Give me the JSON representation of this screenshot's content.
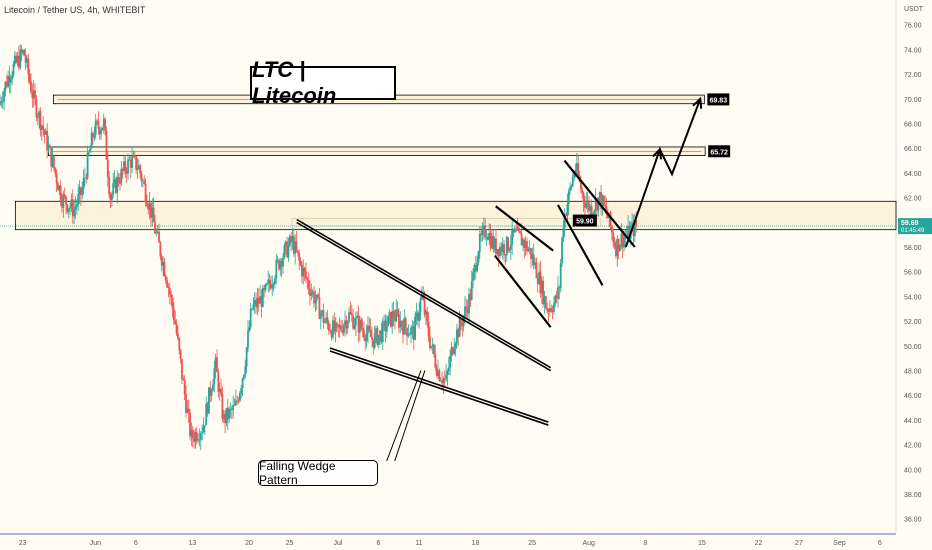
{
  "symbol_label": "Litecoin / Tether US, 4h, WHITEBIT",
  "title_box": "LTC | Litecoin",
  "callout": "Falling Wedge Pattern",
  "currency": "USDT",
  "colors": {
    "up": "#26a69a",
    "down": "#ef5350",
    "zone": "#fdf1d8",
    "zone_border": "#000000",
    "price_line": "#26a69a",
    "background": "#fffdf3",
    "axis_line": "#5c6bc0"
  },
  "chart_data": {
    "type": "candlestick",
    "title": "LTC | Litecoin",
    "xlabel": "",
    "ylabel": "",
    "ylim": [
      35,
      78
    ],
    "y_ticks": [
      "36.00",
      "38.00",
      "40.00",
      "42.00",
      "44.00",
      "46.00",
      "48.00",
      "50.00",
      "52.00",
      "54.00",
      "56.00",
      "58.00",
      "60.00",
      "62.00",
      "64.00",
      "66.00",
      "68.00",
      "70.00",
      "72.00",
      "74.00",
      "76.00"
    ],
    "x_ticks": [
      {
        "label": "23",
        "day": 0
      },
      {
        "label": "Jun",
        "day": 9
      },
      {
        "label": "6",
        "day": 14
      },
      {
        "label": "13",
        "day": 21
      },
      {
        "label": "20",
        "day": 28
      },
      {
        "label": "25",
        "day": 33
      },
      {
        "label": "Jul",
        "day": 39
      },
      {
        "label": "6",
        "day": 44
      },
      {
        "label": "11",
        "day": 49
      },
      {
        "label": "18",
        "day": 56
      },
      {
        "label": "25",
        "day": 63
      },
      {
        "label": "Aug",
        "day": 70
      },
      {
        "label": "8",
        "day": 77
      },
      {
        "label": "15",
        "day": 84
      },
      {
        "label": "22",
        "day": 91
      },
      {
        "label": "27",
        "day": 96
      },
      {
        "label": "Sep",
        "day": 101
      },
      {
        "label": "6",
        "day": 106
      }
    ],
    "x_range_days": [
      -2.8,
      108
    ],
    "price_path": [
      [
        -2.8,
        69.5
      ],
      [
        -1.5,
        72.0
      ],
      [
        0.3,
        73.8
      ],
      [
        1.5,
        70.0
      ],
      [
        2.5,
        68.0
      ],
      [
        4.0,
        64.5
      ],
      [
        5.0,
        62.0
      ],
      [
        6.5,
        61.0
      ],
      [
        7.5,
        62.5
      ],
      [
        9.0,
        67.5
      ],
      [
        10.2,
        68.0
      ],
      [
        11.0,
        62.0
      ],
      [
        12.0,
        63.5
      ],
      [
        13.5,
        65.0
      ],
      [
        14.5,
        64.5
      ],
      [
        16.0,
        61.0
      ],
      [
        16.5,
        59.5
      ],
      [
        18.0,
        55.5
      ],
      [
        19.0,
        52.0
      ],
      [
        20.0,
        47.0
      ],
      [
        21.0,
        42.5
      ],
      [
        22.5,
        43.5
      ],
      [
        24.0,
        48.5
      ],
      [
        25.0,
        44.0
      ],
      [
        26.5,
        45.0
      ],
      [
        27.5,
        48.0
      ],
      [
        28.5,
        53.0
      ],
      [
        30.0,
        54.0
      ],
      [
        32.0,
        57.0
      ],
      [
        33.5,
        58.5
      ],
      [
        34.5,
        56.5
      ],
      [
        35.5,
        55.0
      ],
      [
        36.5,
        53.5
      ],
      [
        37.5,
        52.0
      ],
      [
        39.0,
        51.0
      ],
      [
        40.5,
        52.5
      ],
      [
        42.0,
        51.5
      ],
      [
        43.5,
        50.5
      ],
      [
        44.5,
        51.0
      ],
      [
        46.0,
        52.5
      ],
      [
        47.5,
        51.5
      ],
      [
        48.5,
        51.0
      ],
      [
        49.5,
        54.0
      ],
      [
        50.5,
        50.5
      ],
      [
        51.5,
        48.0
      ],
      [
        52.5,
        47.0
      ],
      [
        53.5,
        50.5
      ],
      [
        54.5,
        52.0
      ],
      [
        55.5,
        54.0
      ],
      [
        56.5,
        58.0
      ],
      [
        57.5,
        59.5
      ],
      [
        58.5,
        58.0
      ],
      [
        60.0,
        58.0
      ],
      [
        61.0,
        59.0
      ],
      [
        62.0,
        58.5
      ],
      [
        63.0,
        57.5
      ],
      [
        64.0,
        55.5
      ],
      [
        65.0,
        53.0
      ],
      [
        66.0,
        53.5
      ],
      [
        66.5,
        54.5
      ],
      [
        67.0,
        60.0
      ],
      [
        68.0,
        63.0
      ],
      [
        68.5,
        64.5
      ],
      [
        69.5,
        62.0
      ],
      [
        70.5,
        61.0
      ],
      [
        71.5,
        62.0
      ],
      [
        72.5,
        60.5
      ],
      [
        73.5,
        58.0
      ],
      [
        74.0,
        58.5
      ],
      [
        75.0,
        59.0
      ],
      [
        76.0,
        59.69
      ]
    ],
    "zones": [
      {
        "bottom": 69.6,
        "top": 70.3,
        "from_day": 3.8,
        "to_day": 84.3,
        "label": "69.83"
      },
      {
        "bottom": 65.4,
        "top": 66.1,
        "from_day": 3.2,
        "to_day": 84.4,
        "label": "65.72"
      },
      {
        "bottom": 59.7,
        "top": 60.3,
        "from_day": 33.3,
        "to_day": 71.5,
        "label": "59.90"
      },
      {
        "bottom": 59.4,
        "top": 61.7,
        "from_day": -0.9,
        "to_day": 108
      }
    ],
    "last_price": {
      "value": "59.69",
      "countdown": "01:45:49"
    },
    "trendlines": [
      {
        "points": [
          [
            33.9,
            60.1
          ],
          [
            65.3,
            48.1
          ]
        ],
        "style": "double"
      },
      {
        "points": [
          [
            38.0,
            49.7
          ],
          [
            65.0,
            43.7
          ]
        ],
        "style": "double"
      },
      {
        "points": [
          [
            58.5,
            61.3
          ],
          [
            65.6,
            57.7
          ]
        ],
        "style": "single"
      },
      {
        "points": [
          [
            58.4,
            57.3
          ],
          [
            65.3,
            51.5
          ]
        ],
        "style": "single"
      },
      {
        "points": [
          [
            67.0,
            65.0
          ],
          [
            75.7,
            58.0
          ]
        ],
        "style": "single"
      },
      {
        "points": [
          [
            66.2,
            61.4
          ],
          [
            71.7,
            54.9
          ]
        ],
        "style": "single"
      }
    ],
    "projection": [
      [
        74.6,
        58.0
      ],
      [
        78.8,
        65.9
      ],
      [
        80.3,
        63.9
      ],
      [
        83.8,
        70.0
      ]
    ],
    "callout_leader": [
      [
        47.0,
        46.2
      ],
      [
        49.5,
        48.0
      ]
    ]
  }
}
